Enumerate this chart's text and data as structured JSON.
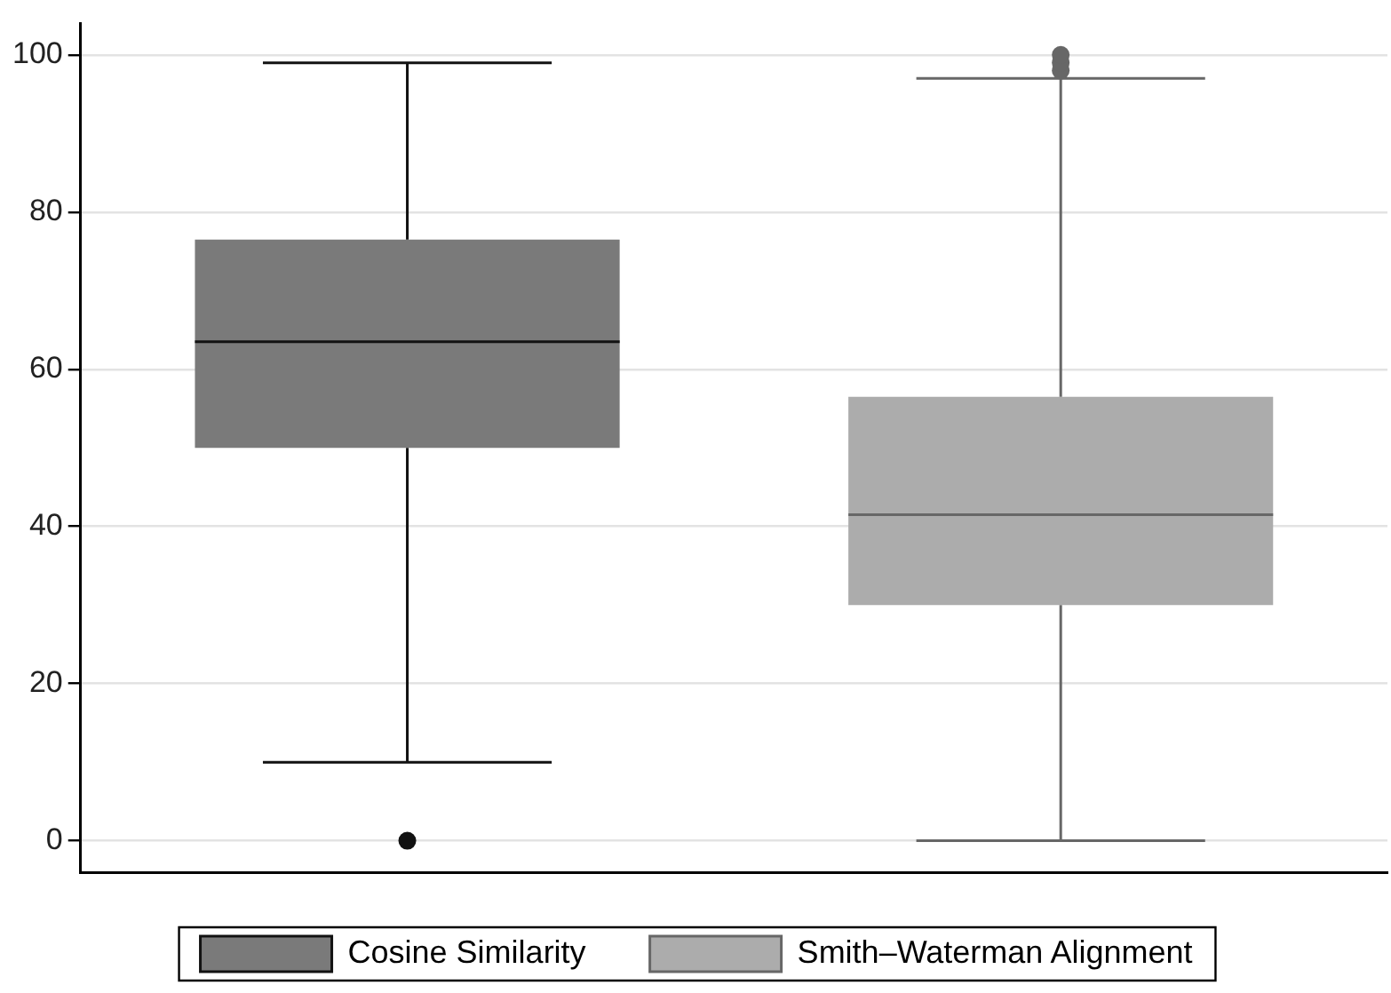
{
  "chart_data": {
    "type": "box",
    "categories": [
      null,
      null
    ],
    "series": [
      {
        "name": "Cosine Similarity",
        "color": "#7a7a7a",
        "boxes": [
          {
            "low": 10,
            "q1": 50,
            "median": 63.5,
            "q3": 76.5,
            "high": 99,
            "outliers": [
              0
            ]
          },
          null
        ]
      },
      {
        "name": "Smith–Waterman Alignment",
        "color": "#acacac",
        "boxes": [
          null,
          {
            "low": 0,
            "q1": 30,
            "median": 41.5,
            "q3": 56.5,
            "high": 97,
            "outliers": [
              98,
              99,
              100
            ]
          }
        ]
      }
    ],
    "ylim": [
      -4,
      104
    ],
    "yticks": [
      0,
      20,
      40,
      60,
      80,
      100
    ],
    "grid": "y",
    "legend": "bottom",
    "tick_labels": "y"
  }
}
